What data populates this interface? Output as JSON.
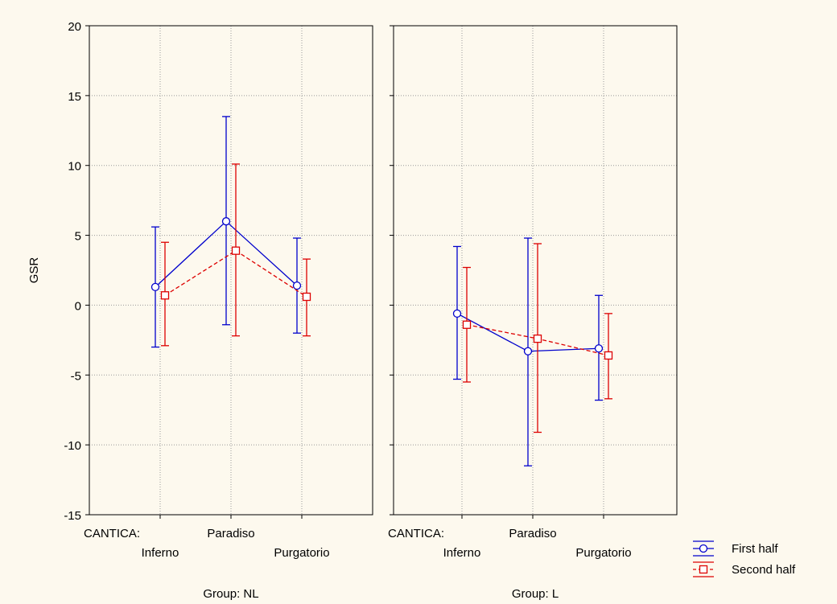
{
  "chart_data": {
    "type": "line",
    "ylabel": "GSR",
    "ylim": [
      -15,
      20
    ],
    "yticks": [
      -15,
      -10,
      -5,
      0,
      5,
      10,
      15,
      20
    ],
    "grid": true,
    "factor_label": "CANTICA:",
    "categories": [
      "Inferno",
      "Paradiso",
      "Purgatorio"
    ],
    "legend": {
      "placement": "bottom-right"
    },
    "series_styles": [
      {
        "name": "First half",
        "color": "#0000cc",
        "marker": "circle",
        "dash": "solid"
      },
      {
        "name": "Second half",
        "color": "#dd0000",
        "marker": "square",
        "dash": "dashed"
      }
    ],
    "panels": [
      {
        "group_label": "Group: NL",
        "series": [
          {
            "name": "First half",
            "values": [
              1.3,
              6.0,
              1.4
            ],
            "lower": [
              -3.0,
              -1.4,
              -2.0
            ],
            "upper": [
              5.6,
              13.5,
              4.8
            ]
          },
          {
            "name": "Second half",
            "values": [
              0.7,
              3.9,
              0.6
            ],
            "lower": [
              -2.9,
              -2.2,
              -2.2
            ],
            "upper": [
              4.5,
              10.1,
              3.3
            ]
          }
        ]
      },
      {
        "group_label": "Group: L",
        "series": [
          {
            "name": "First half",
            "values": [
              -0.6,
              -3.3,
              -3.1
            ],
            "lower": [
              -5.3,
              -11.5,
              -6.8
            ],
            "upper": [
              4.2,
              4.8,
              0.7
            ]
          },
          {
            "name": "Second half",
            "values": [
              -1.4,
              -2.4,
              -3.6
            ],
            "lower": [
              -5.5,
              -9.1,
              -6.7
            ],
            "upper": [
              2.7,
              4.4,
              -0.6
            ]
          }
        ]
      }
    ]
  }
}
